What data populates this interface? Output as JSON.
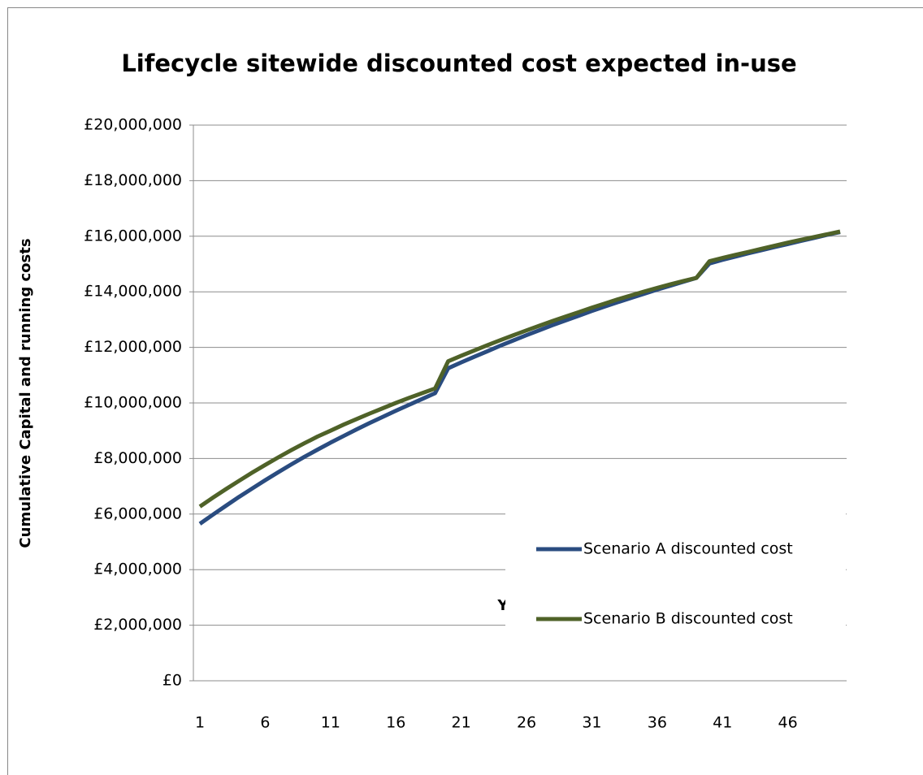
{
  "chart_data": {
    "type": "line",
    "title": "Lifecycle sitewide discounted cost expected in-use",
    "x_label": "Years",
    "y_label": "Cumulative Capital and running costs",
    "categories": [
      "1",
      null,
      null,
      null,
      null,
      "6",
      null,
      null,
      null,
      null,
      "11",
      null,
      null,
      null,
      null,
      "16",
      null,
      null,
      null,
      null,
      "21",
      null,
      null,
      null,
      null,
      "26",
      null,
      null,
      null,
      null,
      "31",
      null,
      null,
      null,
      null,
      "36",
      null,
      null,
      null,
      null,
      "41",
      null,
      null,
      null,
      null,
      "46",
      null,
      null,
      null,
      null
    ],
    "series": [
      {
        "name": "Scenario A discounted cost",
        "color": "#2a4c80",
        "values": [
          5650000,
          5980000,
          6300000,
          6620000,
          6920000,
          7220000,
          7510000,
          7790000,
          8060000,
          8320000,
          8570000,
          8810000,
          9050000,
          9280000,
          9500000,
          9720000,
          9930000,
          10140000,
          10350000,
          11250000,
          11460000,
          11660000,
          11860000,
          12060000,
          12250000,
          12440000,
          12620000,
          12800000,
          12970000,
          13140000,
          13310000,
          13470000,
          13630000,
          13780000,
          13930000,
          14080000,
          14220000,
          14360000,
          14500000,
          15020000,
          15150000,
          15270000,
          15390000,
          15500000,
          15610000,
          15720000,
          15830000,
          15940000,
          16050000,
          16150000
        ]
      },
      {
        "name": "Scenario B discounted cost",
        "color": "#4f6228",
        "values": [
          6270000,
          6590000,
          6900000,
          7200000,
          7490000,
          7770000,
          8040000,
          8300000,
          8550000,
          8790000,
          9000000,
          9220000,
          9420000,
          9620000,
          9810000,
          10000000,
          10180000,
          10350000,
          10520000,
          11500000,
          11700000,
          11890000,
          12080000,
          12260000,
          12440000,
          12610000,
          12780000,
          12950000,
          13110000,
          13270000,
          13430000,
          13580000,
          13730000,
          13870000,
          14010000,
          14140000,
          14270000,
          14390000,
          14500000,
          15100000,
          15220000,
          15330000,
          15440000,
          15550000,
          15660000,
          15770000,
          15870000,
          15970000,
          16070000,
          16170000
        ]
      }
    ],
    "ylim": [
      0,
      20000000
    ],
    "yticks": [
      {
        "value": 0,
        "label": "£0"
      },
      {
        "value": 2000000,
        "label": "£2,000,000"
      },
      {
        "value": 4000000,
        "label": "£4,000,000"
      },
      {
        "value": 6000000,
        "label": "£6,000,000"
      },
      {
        "value": 8000000,
        "label": "£8,000,000"
      },
      {
        "value": 10000000,
        "label": "£10,000,000"
      },
      {
        "value": 12000000,
        "label": "£12,000,000"
      },
      {
        "value": 14000000,
        "label": "£14,000,000"
      },
      {
        "value": 16000000,
        "label": "£16,000,000"
      },
      {
        "value": 18000000,
        "label": "£18,000,000"
      },
      {
        "value": 20000000,
        "label": "£20,000,000"
      }
    ],
    "grid": true,
    "legend": "lower right"
  }
}
